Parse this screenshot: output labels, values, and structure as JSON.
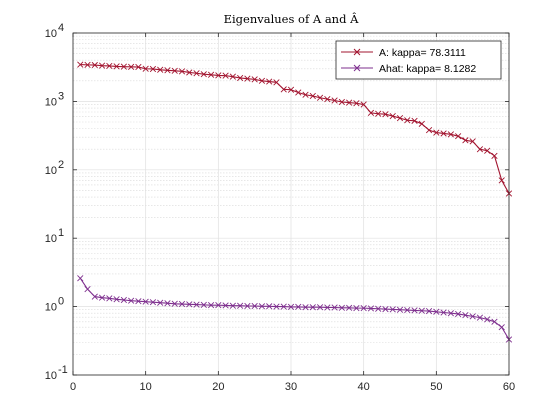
{
  "chart_data": {
    "type": "line",
    "title": "Eigenvalues of A and Â",
    "x_scale": "linear",
    "y_scale": "log",
    "xlim": [
      0,
      60
    ],
    "ylim": [
      0.1,
      10000
    ],
    "x_ticks": [
      0,
      10,
      20,
      30,
      40,
      50,
      60
    ],
    "x_tick_labels": [
      "0",
      "10",
      "20",
      "30",
      "40",
      "50",
      "60"
    ],
    "y_ticks": [
      0.1,
      1,
      10,
      100,
      1000,
      10000
    ],
    "y_tick_labels": [
      {
        "base": "10",
        "exp": "-1"
      },
      {
        "base": "10",
        "exp": "0"
      },
      {
        "base": "10",
        "exp": "1"
      },
      {
        "base": "10",
        "exp": "2"
      },
      {
        "base": "10",
        "exp": "3"
      },
      {
        "base": "10",
        "exp": "4"
      }
    ],
    "grid": true,
    "minor_grid": true,
    "legend_position": "top-right",
    "series": [
      {
        "name": "A: kappa= 78.3111",
        "color": "#A2142F",
        "marker": "x",
        "x": [
          1,
          2,
          3,
          4,
          5,
          6,
          7,
          8,
          9,
          10,
          11,
          12,
          13,
          14,
          15,
          16,
          17,
          18,
          19,
          20,
          21,
          22,
          23,
          24,
          25,
          26,
          27,
          28,
          29,
          30,
          31,
          32,
          33,
          34,
          35,
          36,
          37,
          38,
          39,
          40,
          41,
          42,
          43,
          44,
          45,
          46,
          47,
          48,
          49,
          50,
          51,
          52,
          53,
          54,
          55,
          56,
          57,
          58,
          59,
          60
        ],
        "y": [
          3450,
          3420,
          3400,
          3330,
          3300,
          3250,
          3220,
          3200,
          3180,
          3000,
          2980,
          2900,
          2850,
          2800,
          2750,
          2650,
          2580,
          2500,
          2450,
          2400,
          2380,
          2300,
          2200,
          2150,
          2100,
          2000,
          1950,
          1900,
          1500,
          1480,
          1350,
          1250,
          1200,
          1130,
          1080,
          1030,
          980,
          960,
          940,
          900,
          680,
          660,
          650,
          610,
          570,
          530,
          520,
          470,
          380,
          350,
          340,
          330,
          310,
          270,
          260,
          200,
          190,
          160,
          70,
          45
        ]
      },
      {
        "name": "Ahat: kappa= 8.1282",
        "color": "#7E2F8E",
        "marker": "x",
        "x": [
          1,
          2,
          3,
          4,
          5,
          6,
          7,
          8,
          9,
          10,
          11,
          12,
          13,
          14,
          15,
          16,
          17,
          18,
          19,
          20,
          21,
          22,
          23,
          24,
          25,
          26,
          27,
          28,
          29,
          30,
          31,
          32,
          33,
          34,
          35,
          36,
          37,
          38,
          39,
          40,
          41,
          42,
          43,
          44,
          45,
          46,
          47,
          48,
          49,
          50,
          51,
          52,
          53,
          54,
          55,
          56,
          57,
          58,
          59,
          60
        ],
        "y": [
          2.6,
          1.8,
          1.4,
          1.35,
          1.32,
          1.28,
          1.25,
          1.22,
          1.2,
          1.18,
          1.16,
          1.14,
          1.12,
          1.1,
          1.09,
          1.08,
          1.07,
          1.06,
          1.05,
          1.05,
          1.04,
          1.03,
          1.03,
          1.02,
          1.02,
          1.01,
          1.01,
          1.0,
          1.0,
          0.99,
          0.99,
          0.98,
          0.98,
          0.98,
          0.97,
          0.97,
          0.96,
          0.96,
          0.95,
          0.95,
          0.94,
          0.93,
          0.92,
          0.91,
          0.9,
          0.89,
          0.88,
          0.87,
          0.86,
          0.84,
          0.82,
          0.8,
          0.78,
          0.75,
          0.72,
          0.69,
          0.65,
          0.6,
          0.5,
          0.33
        ]
      }
    ]
  }
}
